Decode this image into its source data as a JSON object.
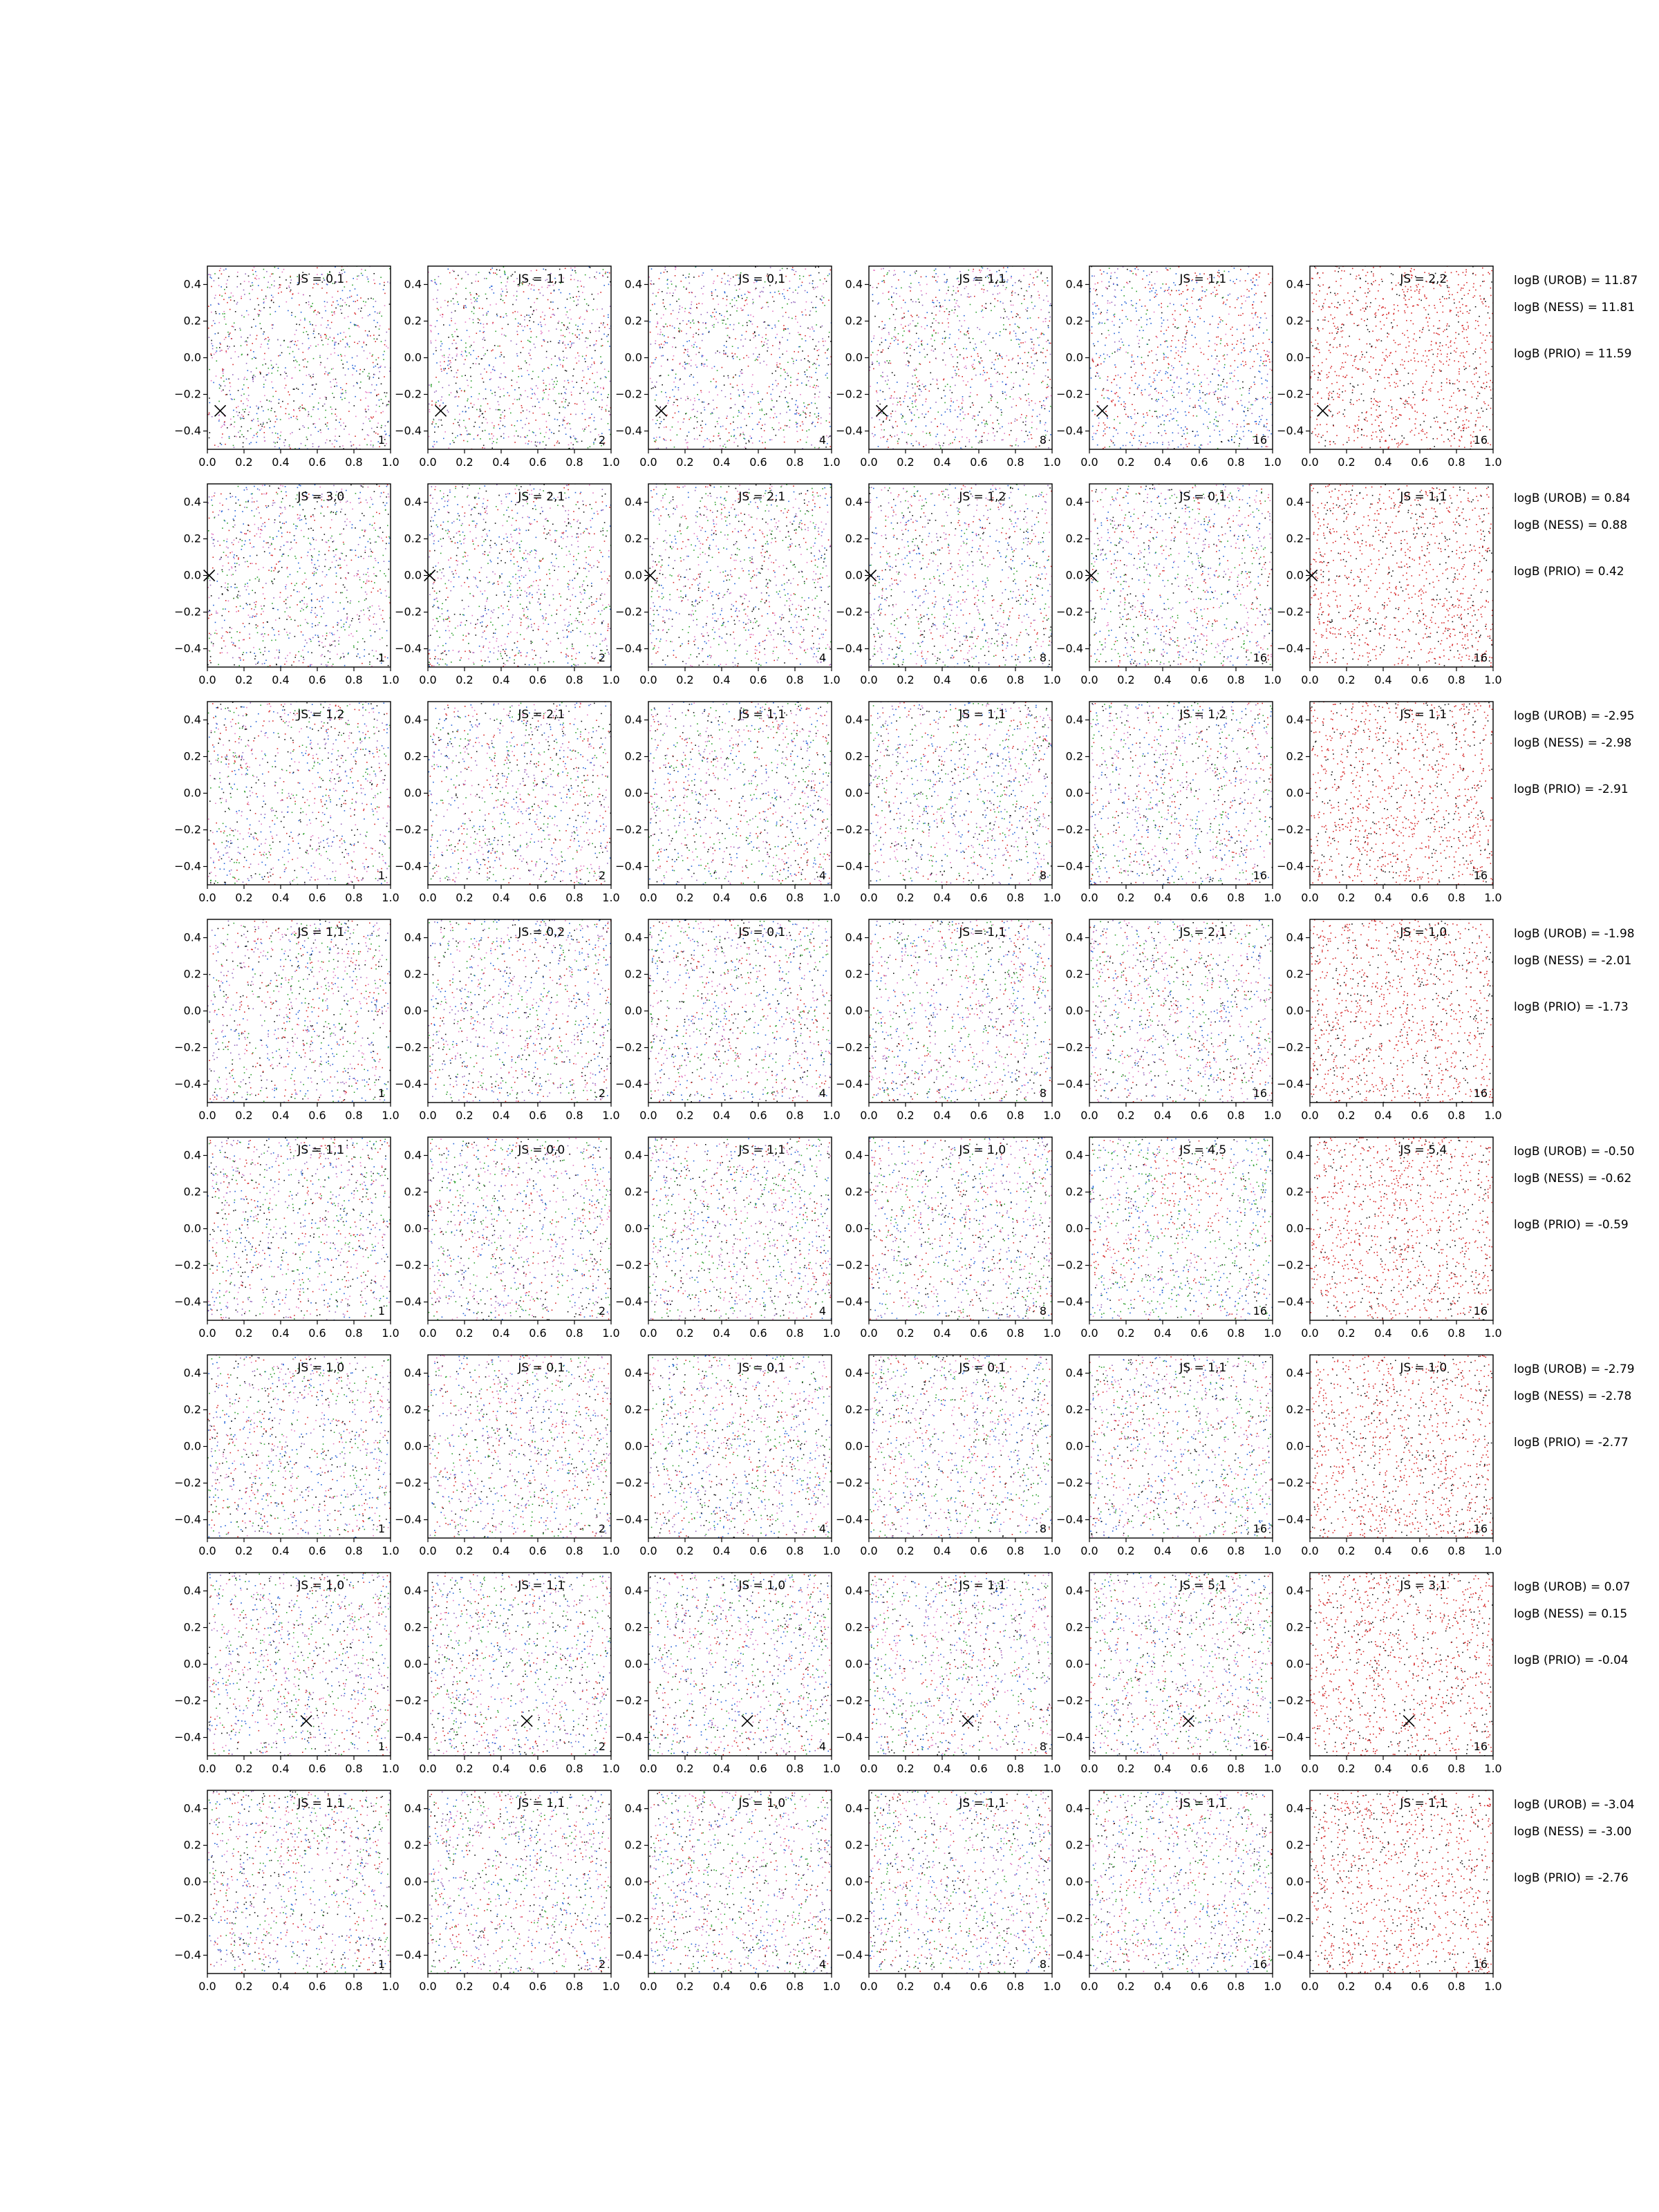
{
  "chart_data": {
    "type": "scatter",
    "layout": {
      "rows": 8,
      "cols": 6
    },
    "xlim": [
      0.0,
      1.0
    ],
    "ylim": [
      -0.5,
      0.5
    ],
    "xticks": [
      "0.0",
      "0.2",
      "0.4",
      "0.6",
      "0.8",
      "1.0"
    ],
    "yticks": [
      "−0.4",
      "−0.2",
      "0.0",
      "0.2",
      "0.4"
    ],
    "ytick_values": [
      -0.4,
      -0.2,
      0.0,
      0.2,
      0.4
    ],
    "xtick_values": [
      0.0,
      0.2,
      0.4,
      0.6,
      0.8,
      1.0
    ],
    "grid": false,
    "corner_labels": [
      "1",
      "2",
      "4",
      "8",
      "16",
      "16"
    ],
    "colors": {
      "mixed": [
        "#d62728",
        "#1f5fd6",
        "#2ca02c",
        "#9467bd",
        "#111111",
        "#e377c2"
      ],
      "last_column": [
        "#d62728",
        "#d62728",
        "#d62728",
        "#111111"
      ],
      "marker": "#000000"
    },
    "rows": [
      {
        "titles": [
          "JS = 0,1",
          "JS = 1,1",
          "JS = 0,1",
          "JS = 1,1",
          "JS = 1,1",
          "JS = 2,2"
        ],
        "marker": {
          "x": 0.07,
          "y": -0.29
        },
        "structure": "offset",
        "logB": {
          "UROB": "logB (UROB) = 11.87",
          "NESS": "logB (NESS) = 11.81",
          "PRIO": "logB (PRIO) = 11.59"
        }
      },
      {
        "titles": [
          "JS = 3,0",
          "JS = 2,1",
          "JS = 2,1",
          "JS = 1,2",
          "JS = 0,1",
          "JS = 1,1"
        ],
        "marker": {
          "x": 0.01,
          "y": 0.0
        },
        "structure": "none",
        "logB": {
          "UROB": "logB (UROB) = 0.84",
          "NESS": "logB (NESS) = 0.88",
          "PRIO": "logB (PRIO) = 0.42"
        }
      },
      {
        "titles": [
          "JS = 1,2",
          "JS = 2,1",
          "JS = 1,1",
          "JS = 1,1",
          "JS = 1,2",
          "JS = 1,1"
        ],
        "marker": null,
        "structure": "none",
        "logB": {
          "UROB": "logB (UROB) = -2.95",
          "NESS": "logB (NESS) = -2.98",
          "PRIO": "logB (PRIO) = -2.91"
        }
      },
      {
        "titles": [
          "JS = 1,1",
          "JS = 0,2",
          "JS = 0,1",
          "JS = 1,1",
          "JS = 2,1",
          "JS = 1,0"
        ],
        "marker": null,
        "structure": "none",
        "logB": {
          "UROB": "logB (UROB) = -1.98",
          "NESS": "logB (NESS) = -2.01",
          "PRIO": "logB (PRIO) = -1.73"
        }
      },
      {
        "titles": [
          "JS = 1,1",
          "JS = 0,0",
          "JS = 1,1",
          "JS = 1,0",
          "JS = 4,5",
          "JS = 5,4"
        ],
        "marker": null,
        "structure": "step",
        "logB": {
          "UROB": "logB (UROB) = -0.50",
          "NESS": "logB (NESS) = -0.62",
          "PRIO": "logB (PRIO) = -0.59"
        }
      },
      {
        "titles": [
          "JS = 1,0",
          "JS = 0,1",
          "JS = 0,1",
          "JS = 0,1",
          "JS = 1,1",
          "JS = 1,0"
        ],
        "marker": null,
        "structure": "none",
        "logB": {
          "UROB": "logB (UROB) = -2.79",
          "NESS": "logB (NESS) = -2.78",
          "PRIO": "logB (PRIO) = -2.77"
        }
      },
      {
        "titles": [
          "JS = 1,0",
          "JS = 1,1",
          "JS = 1,0",
          "JS = 1,1",
          "JS = 5,1",
          "JS = 3,1"
        ],
        "marker": {
          "x": 0.54,
          "y": -0.31
        },
        "structure": "none",
        "logB": {
          "UROB": "logB (UROB) = 0.07",
          "NESS": "logB (NESS) = 0.15",
          "PRIO": "logB (PRIO) = -0.04"
        }
      },
      {
        "titles": [
          "JS = 1,1",
          "JS = 1,1",
          "JS = 1,0",
          "JS = 1,1",
          "JS = 1,1",
          "JS = 1,1"
        ],
        "marker": null,
        "structure": "none",
        "logB": {
          "UROB": "logB (UROB) = -3.04",
          "NESS": "logB (NESS) = -3.00",
          "PRIO": "logB (PRIO) = -2.76"
        }
      }
    ]
  }
}
